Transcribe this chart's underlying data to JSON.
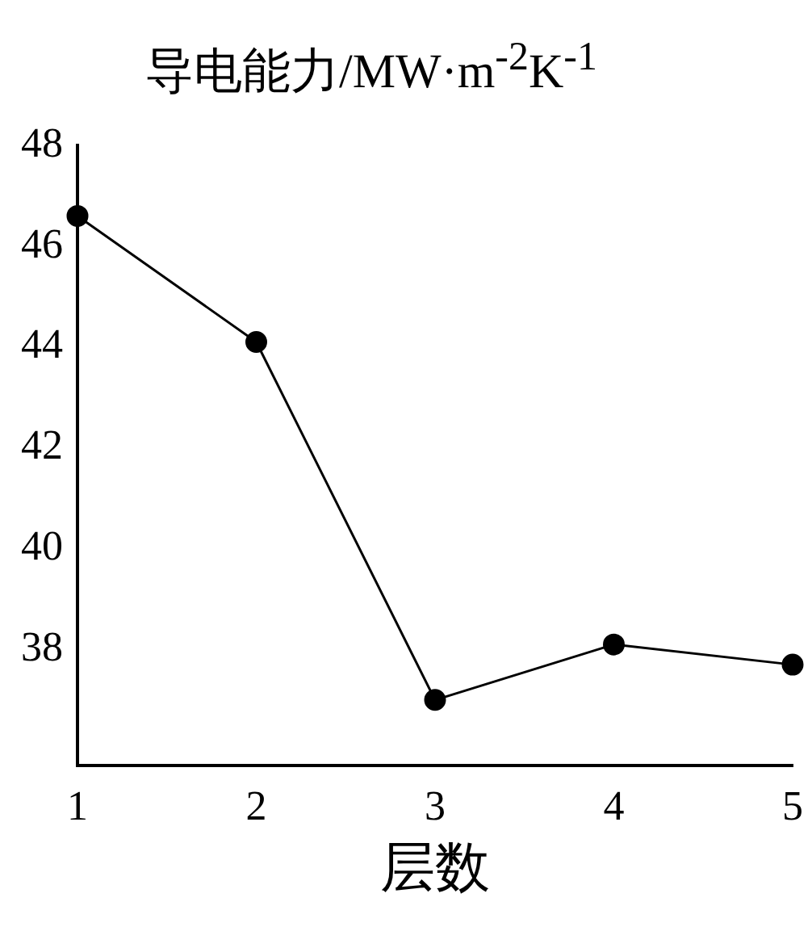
{
  "chart_data": {
    "type": "line",
    "title": "导电能力/MW·m$^{-2}$K$^{-1}$",
    "xlabel": "层数",
    "categories": [
      "1",
      "2",
      "3",
      "4",
      "5"
    ],
    "series": [
      {
        "color": "#000000",
        "values": [
          46.6,
          44.1,
          37.0,
          38.1,
          37.7
        ]
      }
    ],
    "ylim": [
      35.7,
      48
    ],
    "yticks": [
      38,
      40,
      42,
      44,
      46,
      48
    ],
    "grid": false,
    "legend": false,
    "marker": "circle",
    "line_style": "solid"
  }
}
